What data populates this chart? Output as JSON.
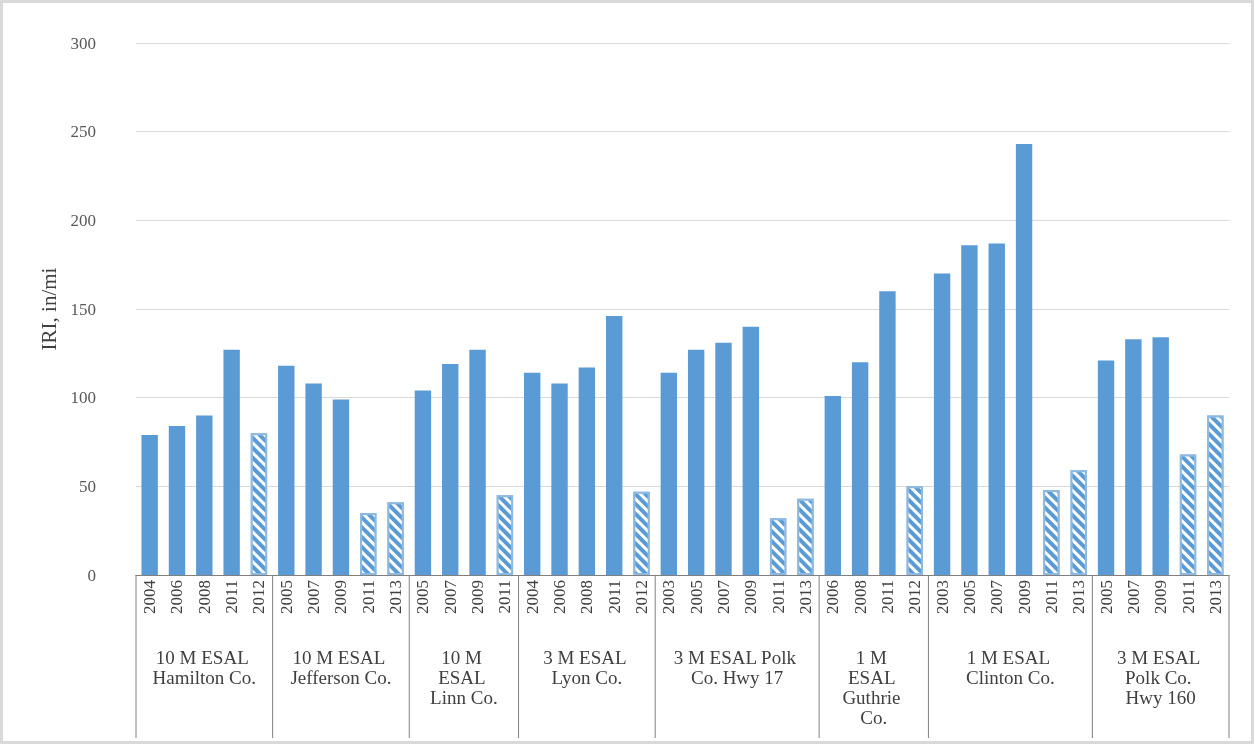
{
  "chart_data": {
    "type": "bar",
    "ylabel": "IRI, in/mi",
    "categories": [
      "2004",
      "2006",
      "2008",
      "2011",
      "2012",
      "2005",
      "2007",
      "2009",
      "2011",
      "2013",
      "2005",
      "2007",
      "2009",
      "2011",
      "2004",
      "2006",
      "2008",
      "2011",
      "2012",
      "2003",
      "2005",
      "2007",
      "2009",
      "2011",
      "2013",
      "2006",
      "2008",
      "2011",
      "2012",
      "2003",
      "2005",
      "2007",
      "2009",
      "2011",
      "2013",
      "2005",
      "2007",
      "2009",
      "2011",
      "2013"
    ],
    "series": [
      {
        "color": "#5b9bd5",
        "values": [
          79,
          84,
          90,
          127,
          null,
          118,
          108,
          99,
          null,
          null,
          104,
          119,
          127,
          null,
          114,
          108,
          117,
          146,
          null,
          114,
          127,
          131,
          140,
          null,
          null,
          101,
          120,
          160,
          null,
          170,
          186,
          187,
          243,
          null,
          null,
          121,
          133,
          134,
          null,
          null
        ]
      },
      {
        "color": "#5b9bd5",
        "values": [
          null,
          null,
          null,
          null,
          80,
          null,
          null,
          null,
          35,
          41,
          null,
          null,
          null,
          45,
          null,
          null,
          null,
          null,
          47,
          null,
          null,
          null,
          null,
          32,
          43,
          null,
          null,
          null,
          50,
          null,
          null,
          null,
          null,
          48,
          59,
          null,
          null,
          null,
          68,
          90
        ]
      }
    ],
    "annotations": [
      "10 M ESAL Hamilton Co.",
      "10 M ESAL Jefferson Co.",
      "10 M ESAL Linn Co.",
      "3 M ESAL Lyon Co.",
      "3 M ESAL Polk Co. Hwy 17",
      "1 M ESAL Guthrie Co.",
      "1 M ESAL Clinton Co.",
      "3 M ESAL Polk Co. Hwy 160"
    ],
    "ylim": [
      0,
      300
    ],
    "yticks": [
      0,
      50,
      100,
      150,
      200,
      250,
      300
    ],
    "grid": "y"
  }
}
